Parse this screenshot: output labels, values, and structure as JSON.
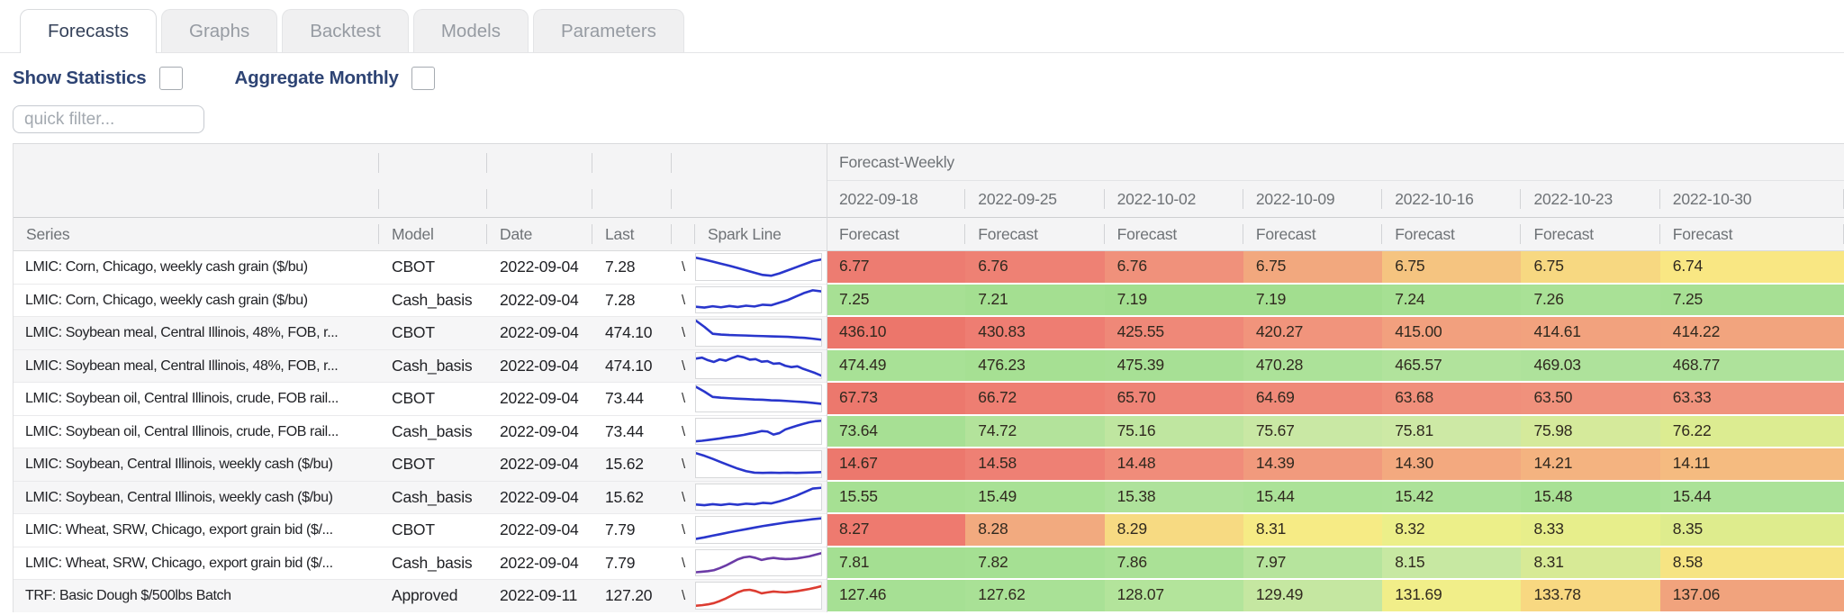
{
  "tabs": {
    "items": [
      {
        "label": "Forecasts",
        "active": true
      },
      {
        "label": "Graphs",
        "active": false
      },
      {
        "label": "Backtest",
        "active": false
      },
      {
        "label": "Models",
        "active": false
      },
      {
        "label": "Parameters",
        "active": false
      }
    ]
  },
  "controls": {
    "show_statistics_label": "Show Statistics",
    "show_statistics_checked": false,
    "aggregate_monthly_label": "Aggregate Monthly",
    "aggregate_monthly_checked": false
  },
  "filter": {
    "placeholder": "quick filter...",
    "value": ""
  },
  "grid": {
    "group_header": "Forecast-Weekly",
    "sub_header": "Forecast",
    "date_columns": [
      "2022-09-18",
      "2022-09-25",
      "2022-10-02",
      "2022-10-09",
      "2022-10-16",
      "2022-10-23",
      "2022-10-30"
    ],
    "columns": {
      "series": "Series",
      "model": "Model",
      "date": "Date",
      "last": "Last",
      "spark": "Spark Line"
    },
    "clipped_glyph": "\\",
    "spark_colors": {
      "blue": "#2936cc",
      "purple": "#6b3ba6",
      "red": "#dc3c31"
    },
    "rows": [
      {
        "series": "LMIC: Corn, Chicago, weekly cash grain ($/bu)",
        "model": "CBOT",
        "date": "2022-09-04",
        "last": "7.28",
        "zebra": false,
        "spark": {
          "color": "#2936cc",
          "points": [
            15,
            22,
            30,
            38,
            46,
            55,
            64,
            73,
            82,
            85,
            76,
            64,
            52,
            40,
            28,
            22
          ]
        },
        "forecasts": [
          {
            "value": "6.77",
            "bg": "#ed7c71"
          },
          {
            "value": "6.76",
            "bg": "#ee8174"
          },
          {
            "value": "6.76",
            "bg": "#f0917b"
          },
          {
            "value": "6.75",
            "bg": "#f2a87e"
          },
          {
            "value": "6.75",
            "bg": "#f5c480"
          },
          {
            "value": "6.75",
            "bg": "#f7d881"
          },
          {
            "value": "6.74",
            "bg": "#f9e783"
          }
        ]
      },
      {
        "series": "LMIC: Corn, Chicago, weekly cash grain ($/bu)",
        "model": "Cash_basis",
        "date": "2022-09-04",
        "last": "7.28",
        "zebra": false,
        "spark": {
          "color": "#2936cc",
          "points": [
            76,
            79,
            74,
            78,
            73,
            77,
            72,
            75,
            68,
            70,
            60,
            50,
            36,
            22,
            12,
            16
          ]
        },
        "forecasts": [
          {
            "value": "7.25",
            "bg": "#a7e094"
          },
          {
            "value": "7.21",
            "bg": "#a4df91"
          },
          {
            "value": "7.19",
            "bg": "#a2de8f"
          },
          {
            "value": "7.19",
            "bg": "#a2de8f"
          },
          {
            "value": "7.24",
            "bg": "#a6e093"
          },
          {
            "value": "7.26",
            "bg": "#a9e196"
          },
          {
            "value": "7.25",
            "bg": "#a7e094"
          }
        ]
      },
      {
        "series": "LMIC: Soybean meal, Central Illinois, 48%, FOB, r...",
        "model": "CBOT",
        "date": "2022-09-04",
        "last": "474.10",
        "zebra": true,
        "spark": {
          "color": "#2936cc",
          "points": [
            4,
            28,
            55,
            58,
            60,
            61,
            62,
            63,
            64,
            65,
            66,
            67,
            69,
            71,
            74,
            78
          ]
        },
        "forecasts": [
          {
            "value": "436.10",
            "bg": "#ec766b"
          },
          {
            "value": "430.83",
            "bg": "#ee7d72"
          },
          {
            "value": "425.55",
            "bg": "#ef8878"
          },
          {
            "value": "420.27",
            "bg": "#f1947c"
          },
          {
            "value": "415.00",
            "bg": "#f2a07e"
          },
          {
            "value": "414.61",
            "bg": "#f2a27e"
          },
          {
            "value": "414.22",
            "bg": "#f2a47e"
          }
        ]
      },
      {
        "series": "LMIC: Soybean meal, Central Illinois, 48%, FOB, r...",
        "model": "Cash_basis",
        "date": "2022-09-04",
        "last": "474.10",
        "zebra": true,
        "spark": {
          "color": "#2936cc",
          "points": [
            22,
            18,
            28,
            35,
            25,
            30,
            20,
            12,
            17,
            26,
            24,
            34,
            32,
            42,
            40,
            50,
            55,
            52,
            62,
            70,
            78,
            88
          ]
        },
        "forecasts": [
          {
            "value": "474.49",
            "bg": "#a8e196"
          },
          {
            "value": "476.23",
            "bg": "#a6e093"
          },
          {
            "value": "475.39",
            "bg": "#a7e095"
          },
          {
            "value": "470.28",
            "bg": "#ace299"
          },
          {
            "value": "465.57",
            "bg": "#b1e39c"
          },
          {
            "value": "469.03",
            "bg": "#aee29b"
          },
          {
            "value": "468.77",
            "bg": "#aee29b"
          }
        ]
      },
      {
        "series": "LMIC: Soybean oil, Central Illinois, crude, FOB rail...",
        "model": "CBOT",
        "date": "2022-09-04",
        "last": "73.44",
        "zebra": false,
        "spark": {
          "color": "#2936cc",
          "points": [
            6,
            24,
            45,
            48,
            50,
            52,
            53,
            55,
            56,
            58,
            59,
            61,
            63,
            65,
            68,
            72
          ]
        },
        "forecasts": [
          {
            "value": "67.73",
            "bg": "#ec786d"
          },
          {
            "value": "66.72",
            "bg": "#ee7e72"
          },
          {
            "value": "65.70",
            "bg": "#ee8376"
          },
          {
            "value": "64.69",
            "bg": "#ef8978"
          },
          {
            "value": "63.68",
            "bg": "#f08f7b"
          },
          {
            "value": "63.50",
            "bg": "#f0917c"
          },
          {
            "value": "63.33",
            "bg": "#f0937d"
          }
        ]
      },
      {
        "series": "LMIC: Soybean oil, Central Illinois, crude, FOB rail...",
        "model": "Cash_basis",
        "date": "2022-09-04",
        "last": "73.44",
        "zebra": false,
        "spark": {
          "color": "#2936cc",
          "points": [
            88,
            86,
            83,
            80,
            77,
            73,
            70,
            67,
            63,
            58,
            54,
            48,
            50,
            62,
            56,
            42,
            34,
            27,
            20,
            14,
            10,
            8
          ]
        },
        "forecasts": [
          {
            "value": "73.64",
            "bg": "#a7e094"
          },
          {
            "value": "74.72",
            "bg": "#b3e39b"
          },
          {
            "value": "75.16",
            "bg": "#bfe6a0"
          },
          {
            "value": "75.67",
            "bg": "#c9e8a4"
          },
          {
            "value": "75.81",
            "bg": "#cde9a5"
          },
          {
            "value": "75.98",
            "bg": "#d5ea9b"
          },
          {
            "value": "76.22",
            "bg": "#dcec91"
          }
        ]
      },
      {
        "series": "LMIC: Soybean, Central Illinois, weekly cash ($/bu)",
        "model": "CBOT",
        "date": "2022-09-04",
        "last": "15.62",
        "zebra": true,
        "spark": {
          "color": "#2936cc",
          "points": [
            8,
            18,
            30,
            43,
            56,
            68,
            78,
            84,
            85,
            84,
            85,
            84,
            85,
            84,
            83,
            82
          ]
        },
        "forecasts": [
          {
            "value": "14.67",
            "bg": "#ec786d"
          },
          {
            "value": "14.58",
            "bg": "#ee8074"
          },
          {
            "value": "14.48",
            "bg": "#f08c7a"
          },
          {
            "value": "14.39",
            "bg": "#f19a7d"
          },
          {
            "value": "14.30",
            "bg": "#f3a97f"
          },
          {
            "value": "14.21",
            "bg": "#f4b380"
          },
          {
            "value": "14.11",
            "bg": "#f5bb80"
          }
        ]
      },
      {
        "series": "LMIC: Soybean, Central Illinois, weekly cash ($/bu)",
        "model": "Cash_basis",
        "date": "2022-09-04",
        "last": "15.62",
        "zebra": true,
        "spark": {
          "color": "#2936cc",
          "points": [
            78,
            81,
            77,
            80,
            76,
            79,
            75,
            77,
            72,
            74,
            66,
            56,
            44,
            30,
            16,
            13
          ]
        },
        "forecasts": [
          {
            "value": "15.55",
            "bg": "#a6e093"
          },
          {
            "value": "15.49",
            "bg": "#a8e195"
          },
          {
            "value": "15.38",
            "bg": "#aee29b"
          },
          {
            "value": "15.44",
            "bg": "#abe298"
          },
          {
            "value": "15.42",
            "bg": "#ace299"
          },
          {
            "value": "15.48",
            "bg": "#a8e195"
          },
          {
            "value": "15.44",
            "bg": "#abe298"
          }
        ]
      },
      {
        "series": "LMIC: Wheat, SRW, Chicago, export grain bid ($/...",
        "model": "CBOT",
        "date": "2022-09-04",
        "last": "7.79",
        "zebra": false,
        "spark": {
          "color": "#2936cc",
          "points": [
            86,
            80,
            73,
            67,
            60,
            54,
            48,
            42,
            36,
            31,
            26,
            21,
            17,
            13,
            9,
            6
          ]
        },
        "forecasts": [
          {
            "value": "8.27",
            "bg": "#ee7a6f"
          },
          {
            "value": "8.28",
            "bg": "#f2aa7f"
          },
          {
            "value": "8.29",
            "bg": "#f7da82"
          },
          {
            "value": "8.31",
            "bg": "#f6eb85"
          },
          {
            "value": "8.32",
            "bg": "#ecef89"
          },
          {
            "value": "8.33",
            "bg": "#e7ee8b"
          },
          {
            "value": "8.35",
            "bg": "#deec8d"
          }
        ]
      },
      {
        "series": "LMIC: Wheat, SRW, Chicago, export grain bid ($/...",
        "model": "Cash_basis",
        "date": "2022-09-04",
        "last": "7.79",
        "zebra": false,
        "spark": {
          "color": "#6b3ba6",
          "points": [
            86,
            84,
            82,
            78,
            70,
            60,
            48,
            36,
            28,
            25,
            30,
            38,
            33,
            30,
            33,
            35,
            34,
            32,
            28,
            24,
            18,
            12
          ]
        },
        "forecasts": [
          {
            "value": "7.81",
            "bg": "#a4df92"
          },
          {
            "value": "7.82",
            "bg": "#a5e093"
          },
          {
            "value": "7.86",
            "bg": "#aae196"
          },
          {
            "value": "7.97",
            "bg": "#b6e49d"
          },
          {
            "value": "8.15",
            "bg": "#c7e8a2"
          },
          {
            "value": "8.31",
            "bg": "#d7ea96"
          },
          {
            "value": "8.58",
            "bg": "#f6e483"
          }
        ]
      },
      {
        "series": "TRF: Basic Dough $/500lbs Batch",
        "model": "Approved",
        "date": "2022-09-11",
        "last": "127.20",
        "zebra": true,
        "spark": {
          "color": "#dc3c31",
          "points": [
            90,
            88,
            85,
            80,
            72,
            62,
            50,
            38,
            30,
            28,
            33,
            42,
            38,
            35,
            37,
            38,
            36,
            33,
            29,
            25,
            20,
            14
          ]
        },
        "forecasts": [
          {
            "value": "127.46",
            "bg": "#a6e094"
          },
          {
            "value": "127.62",
            "bg": "#a9e196"
          },
          {
            "value": "128.07",
            "bg": "#b3e49b"
          },
          {
            "value": "129.49",
            "bg": "#c5e7a1"
          },
          {
            "value": "131.69",
            "bg": "#f1ee89"
          },
          {
            "value": "133.78",
            "bg": "#f8d881"
          },
          {
            "value": "137.06",
            "bg": "#f1a37d"
          }
        ]
      }
    ]
  }
}
